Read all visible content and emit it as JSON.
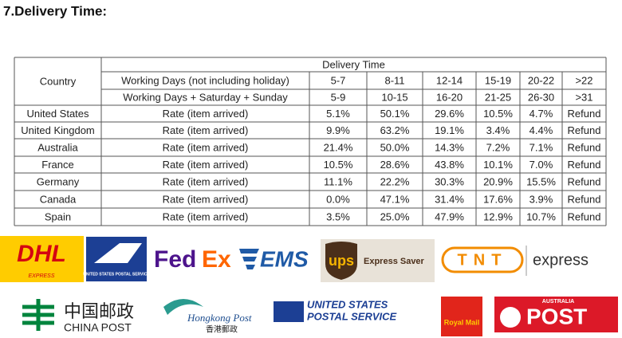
{
  "title": "7.Delivery Time:",
  "table": {
    "country_header": "Country",
    "group_header": "Delivery Time",
    "header_rows": [
      {
        "label": "Working Days (not including holiday)",
        "ranges": [
          "5-7",
          "8-11",
          "12-14",
          "15-19",
          "20-22",
          ">22"
        ]
      },
      {
        "label": "Working Days + Saturday + Sunday",
        "ranges": [
          "5-9",
          "10-15",
          "16-20",
          "21-25",
          "26-30",
          ">31"
        ]
      }
    ],
    "rows": [
      {
        "country": "United States",
        "measure": "Rate (item arrived)",
        "cells": [
          "5.1%",
          "50.1%",
          "29.6%",
          "10.5%",
          "4.7%",
          "Refund"
        ]
      },
      {
        "country": "United Kingdom",
        "measure": "Rate (item arrived)",
        "cells": [
          "9.9%",
          "63.2%",
          "19.1%",
          "3.4%",
          "4.4%",
          "Refund"
        ]
      },
      {
        "country": "Australia",
        "measure": "Rate (item arrived)",
        "cells": [
          "21.4%",
          "50.0%",
          "14.3%",
          "7.2%",
          "7.1%",
          "Refund"
        ]
      },
      {
        "country": "France",
        "measure": "Rate (item arrived)",
        "cells": [
          "10.5%",
          "28.6%",
          "43.8%",
          "10.1%",
          "7.0%",
          "Refund"
        ]
      },
      {
        "country": "Germany",
        "measure": "Rate (item arrived)",
        "cells": [
          "11.1%",
          "22.2%",
          "30.3%",
          "20.9%",
          "15.5%",
          "Refund"
        ]
      },
      {
        "country": "Canada",
        "measure": "Rate (item arrived)",
        "cells": [
          "0.0%",
          "47.1%",
          "31.4%",
          "17.6%",
          "3.9%",
          "Refund"
        ]
      },
      {
        "country": "Spain",
        "measure": "Rate (item arrived)",
        "cells": [
          "3.5%",
          "25.0%",
          "47.9%",
          "12.9%",
          "10.7%",
          "Refund"
        ]
      }
    ]
  },
  "logos": {
    "dhl": "DHL",
    "dhl_sub": "EXPRESS",
    "usps_box": "UNITED STATES POSTAL SERVICE",
    "fedex_a": "Fed",
    "fedex_b": "Ex",
    "ems": "EMS",
    "ups": "ups",
    "ups_sub": "Express Saver",
    "tnt": "TNT",
    "tnt_sub": "express",
    "china_cn": "中国邮政",
    "china_en": "CHINA POST",
    "hk_en": "Hongkong Post",
    "hk_cn": "香港郵政",
    "usps_a": "UNITED STATES",
    "usps_b": "POSTAL SERVICE",
    "royal": "Royal Mail",
    "aus_a": "AUSTRALIA",
    "aus_b": "POST"
  }
}
